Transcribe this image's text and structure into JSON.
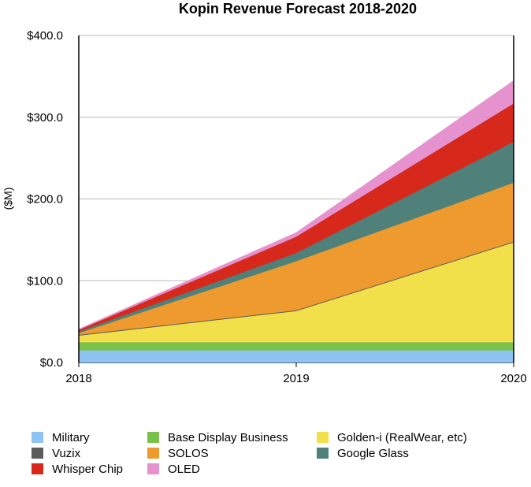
{
  "chart_data": {
    "type": "area",
    "stacked": true,
    "title": "Kopin Revenue Forecast 2018-2020",
    "ylabel": "($M)",
    "xlabel": "",
    "categories": [
      "2018",
      "2019",
      "2020"
    ],
    "ylim": [
      0,
      400
    ],
    "yticks": [
      "$0.0",
      "$100.0",
      "$200.0",
      "$300.0",
      "$400.0"
    ],
    "grid": true,
    "legend_position": "bottom",
    "series": [
      {
        "name": "Military",
        "color": "#8ec3f2",
        "values": [
          15,
          15,
          15
        ]
      },
      {
        "name": "Base Display Business",
        "color": "#79c14a",
        "values": [
          10,
          10,
          10
        ]
      },
      {
        "name": "Golden-i (RealWear, etc)",
        "color": "#f2e04a",
        "values": [
          8,
          38,
          122
        ]
      },
      {
        "name": "Vuzix",
        "color": "#5c5c5c",
        "values": [
          1,
          1,
          1
        ]
      },
      {
        "name": "SOLOS",
        "color": "#ee9a2e",
        "values": [
          2,
          60,
          72
        ]
      },
      {
        "name": "Google Glass",
        "color": "#4f8079",
        "values": [
          2,
          10,
          50
        ]
      },
      {
        "name": "Whisper Chip",
        "color": "#d6281b",
        "values": [
          2,
          20,
          47
        ]
      },
      {
        "name": "OLED",
        "color": "#e592cf",
        "values": [
          1,
          5,
          28
        ]
      }
    ]
  }
}
